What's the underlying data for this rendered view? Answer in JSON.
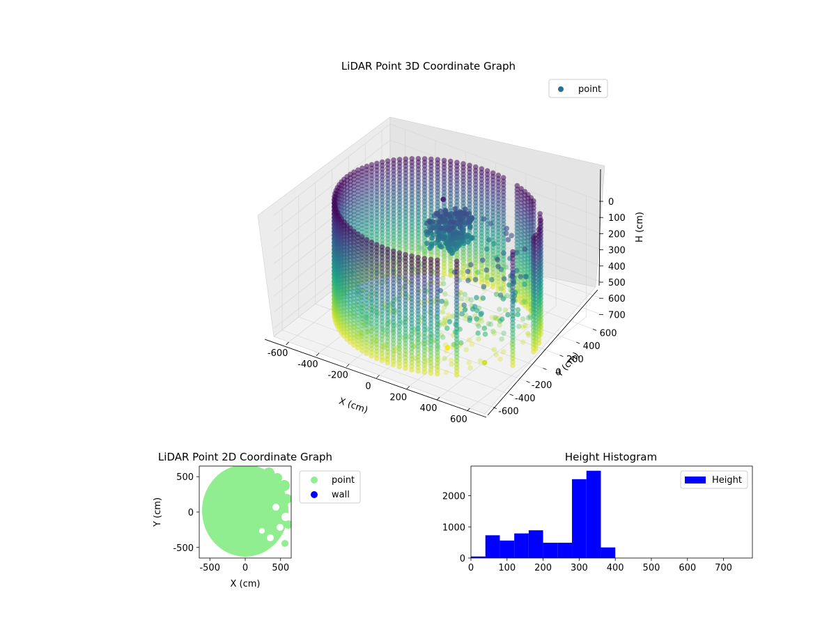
{
  "chart_data": [
    {
      "type": "scatter3d",
      "title": "LiDAR Point 3D Coordinate Graph",
      "xlabel": "X (cm)",
      "ylabel": "Y (cm)",
      "zlabel": "H (cm)",
      "x_ticks": [
        -600,
        -400,
        -200,
        0,
        200,
        400,
        600
      ],
      "y_ticks": [
        -600,
        -400,
        -200,
        0,
        200,
        400,
        600
      ],
      "z_ticks": [
        0,
        100,
        200,
        300,
        400,
        500,
        600,
        700
      ],
      "xlim": [
        -700,
        700
      ],
      "ylim": [
        -700,
        700
      ],
      "zlim": [
        750,
        0
      ],
      "z_inverted": true,
      "colormap": "viridis",
      "legend": {
        "entries": [
          {
            "label": "point",
            "color": "#2a6f8e"
          }
        ],
        "placement": "upper-right"
      },
      "grid": true,
      "description": "Ring of points at radius ~600 cm with heights 0-750 cm forming a cylindrical wall; dense cluster near x~-100, y~200, h~200-350"
    },
    {
      "type": "scatter",
      "title": "LiDAR Point 2D Coordinate Graph",
      "xlabel": "X (cm)",
      "ylabel": "Y (cm)",
      "x_ticks": [
        -500,
        0,
        500
      ],
      "y_ticks": [
        -500,
        0,
        500
      ],
      "xlim": [
        -650,
        650
      ],
      "ylim": [
        -650,
        650
      ],
      "series": [
        {
          "name": "point",
          "color": "#90ee90"
        },
        {
          "name": "wall",
          "color": "#0000ff"
        }
      ],
      "legend_placement": "outside-right",
      "grid": false
    },
    {
      "type": "bar",
      "title": "Height Histogram",
      "xlabel": "",
      "ylabel": "",
      "series": [
        {
          "name": "Height",
          "color": "#0000ff"
        }
      ],
      "bin_edges": [
        0,
        40,
        80,
        120,
        160,
        200,
        240,
        280,
        320,
        360,
        400
      ],
      "values": [
        50,
        730,
        560,
        790,
        890,
        490,
        490,
        2530,
        2800,
        340
      ],
      "x_ticks": [
        0,
        100,
        200,
        300,
        400,
        500,
        600,
        700
      ],
      "y_ticks": [
        0,
        1000,
        2000
      ],
      "xlim": [
        0,
        780
      ],
      "ylim": [
        0,
        2950
      ],
      "legend_placement": "upper-right"
    }
  ]
}
